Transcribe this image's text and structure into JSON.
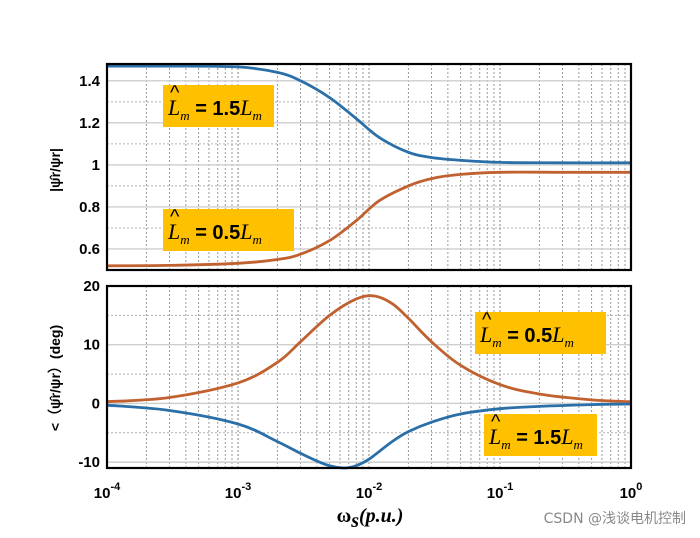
{
  "chart_data": [
    {
      "type": "line",
      "x_scale": "log",
      "xlim": [
        0.0001,
        1
      ],
      "ylim": [
        0.5,
        1.48
      ],
      "ylabel": "|ψ̂r/ψr|",
      "yticks": [
        "0.6",
        "0.8",
        "1",
        "1.2",
        "1.4"
      ],
      "grid": true,
      "series": [
        {
          "name": "L̂m = 1.5Lm",
          "color": "#2b6fa8",
          "x": [
            0.0001,
            0.0003,
            0.001,
            0.002,
            0.003,
            0.005,
            0.008,
            0.012,
            0.02,
            0.03,
            0.05,
            0.1,
            0.3,
            1
          ],
          "y": [
            1.47,
            1.47,
            1.466,
            1.44,
            1.4,
            1.32,
            1.22,
            1.13,
            1.06,
            1.035,
            1.022,
            1.012,
            1.01,
            1.01
          ]
        },
        {
          "name": "L̂m = 0.5Lm",
          "color": "#c0612f",
          "x": [
            0.0001,
            0.0003,
            0.001,
            0.002,
            0.003,
            0.005,
            0.008,
            0.012,
            0.02,
            0.03,
            0.05,
            0.1,
            0.3,
            1
          ],
          "y": [
            0.52,
            0.522,
            0.532,
            0.55,
            0.575,
            0.64,
            0.735,
            0.83,
            0.9,
            0.935,
            0.955,
            0.965,
            0.965,
            0.965
          ]
        }
      ],
      "annotations": [
        {
          "text": "L̂m = 1.5Lm",
          "symbol": "L̂",
          "sub": "m",
          "rhs": "= 1.5",
          "rhs_symbol": "L",
          "rhs_sub": "m",
          "bg": "#ffc000",
          "bold_rhs": true
        },
        {
          "text": "L̂m = 0.5Lm",
          "symbol": "L̂",
          "sub": "m",
          "rhs": "= 0.5",
          "rhs_symbol": "L",
          "rhs_sub": "m",
          "bg": "#ffc000",
          "bold_rhs": true
        }
      ]
    },
    {
      "type": "line",
      "x_scale": "log",
      "xlim": [
        0.0001,
        1
      ],
      "ylim": [
        -11,
        20
      ],
      "ylabel": "<（ψ̂r/ψr）(deg)",
      "yticks": [
        "-10",
        "0",
        "10",
        "20"
      ],
      "xlabel": "ωs(p.u.)",
      "xticks": [
        "10^-4",
        "10^-3",
        "10^-2",
        "10^-1",
        "10^0"
      ],
      "grid": true,
      "series": [
        {
          "name": "L̂m = 0.5Lm",
          "color": "#c0612f",
          "x": [
            0.0001,
            0.0003,
            0.001,
            0.002,
            0.003,
            0.005,
            0.008,
            0.011,
            0.015,
            0.02,
            0.03,
            0.05,
            0.1,
            0.2,
            0.5,
            1
          ],
          "y": [
            0.3,
            1.0,
            3.5,
            7.0,
            10.5,
            15.0,
            17.8,
            18.3,
            17.0,
            14.5,
            10.5,
            6.5,
            3.2,
            1.6,
            0.6,
            0.3
          ]
        },
        {
          "name": "L̂m = 1.5Lm",
          "color": "#2b6fa8",
          "x": [
            0.0001,
            0.0003,
            0.001,
            0.002,
            0.003,
            0.004,
            0.005,
            0.0065,
            0.008,
            0.01,
            0.015,
            0.02,
            0.03,
            0.05,
            0.1,
            0.2,
            0.5,
            1
          ],
          "y": [
            -0.3,
            -1.2,
            -3.5,
            -6.5,
            -8.5,
            -9.8,
            -10.6,
            -11.0,
            -10.6,
            -9.5,
            -6.5,
            -4.8,
            -3.2,
            -1.8,
            -0.9,
            -0.5,
            -0.2,
            -0.1
          ]
        }
      ],
      "annotations": [
        {
          "text": "L̂m = 0.5Lm",
          "symbol": "L̂",
          "sub": "m",
          "rhs": "= 0.5",
          "rhs_symbol": "L",
          "rhs_sub": "m",
          "bg": "#ffc000",
          "bold_rhs": true
        },
        {
          "text": "L̂m = 1.5Lm",
          "symbol": "L̂",
          "sub": "m",
          "rhs": "= 1.5",
          "rhs_symbol": "L",
          "rhs_sub": "m",
          "bg": "#ffc000",
          "bold_rhs": true
        }
      ]
    }
  ],
  "watermark": "CSDN @浅谈电机控制"
}
